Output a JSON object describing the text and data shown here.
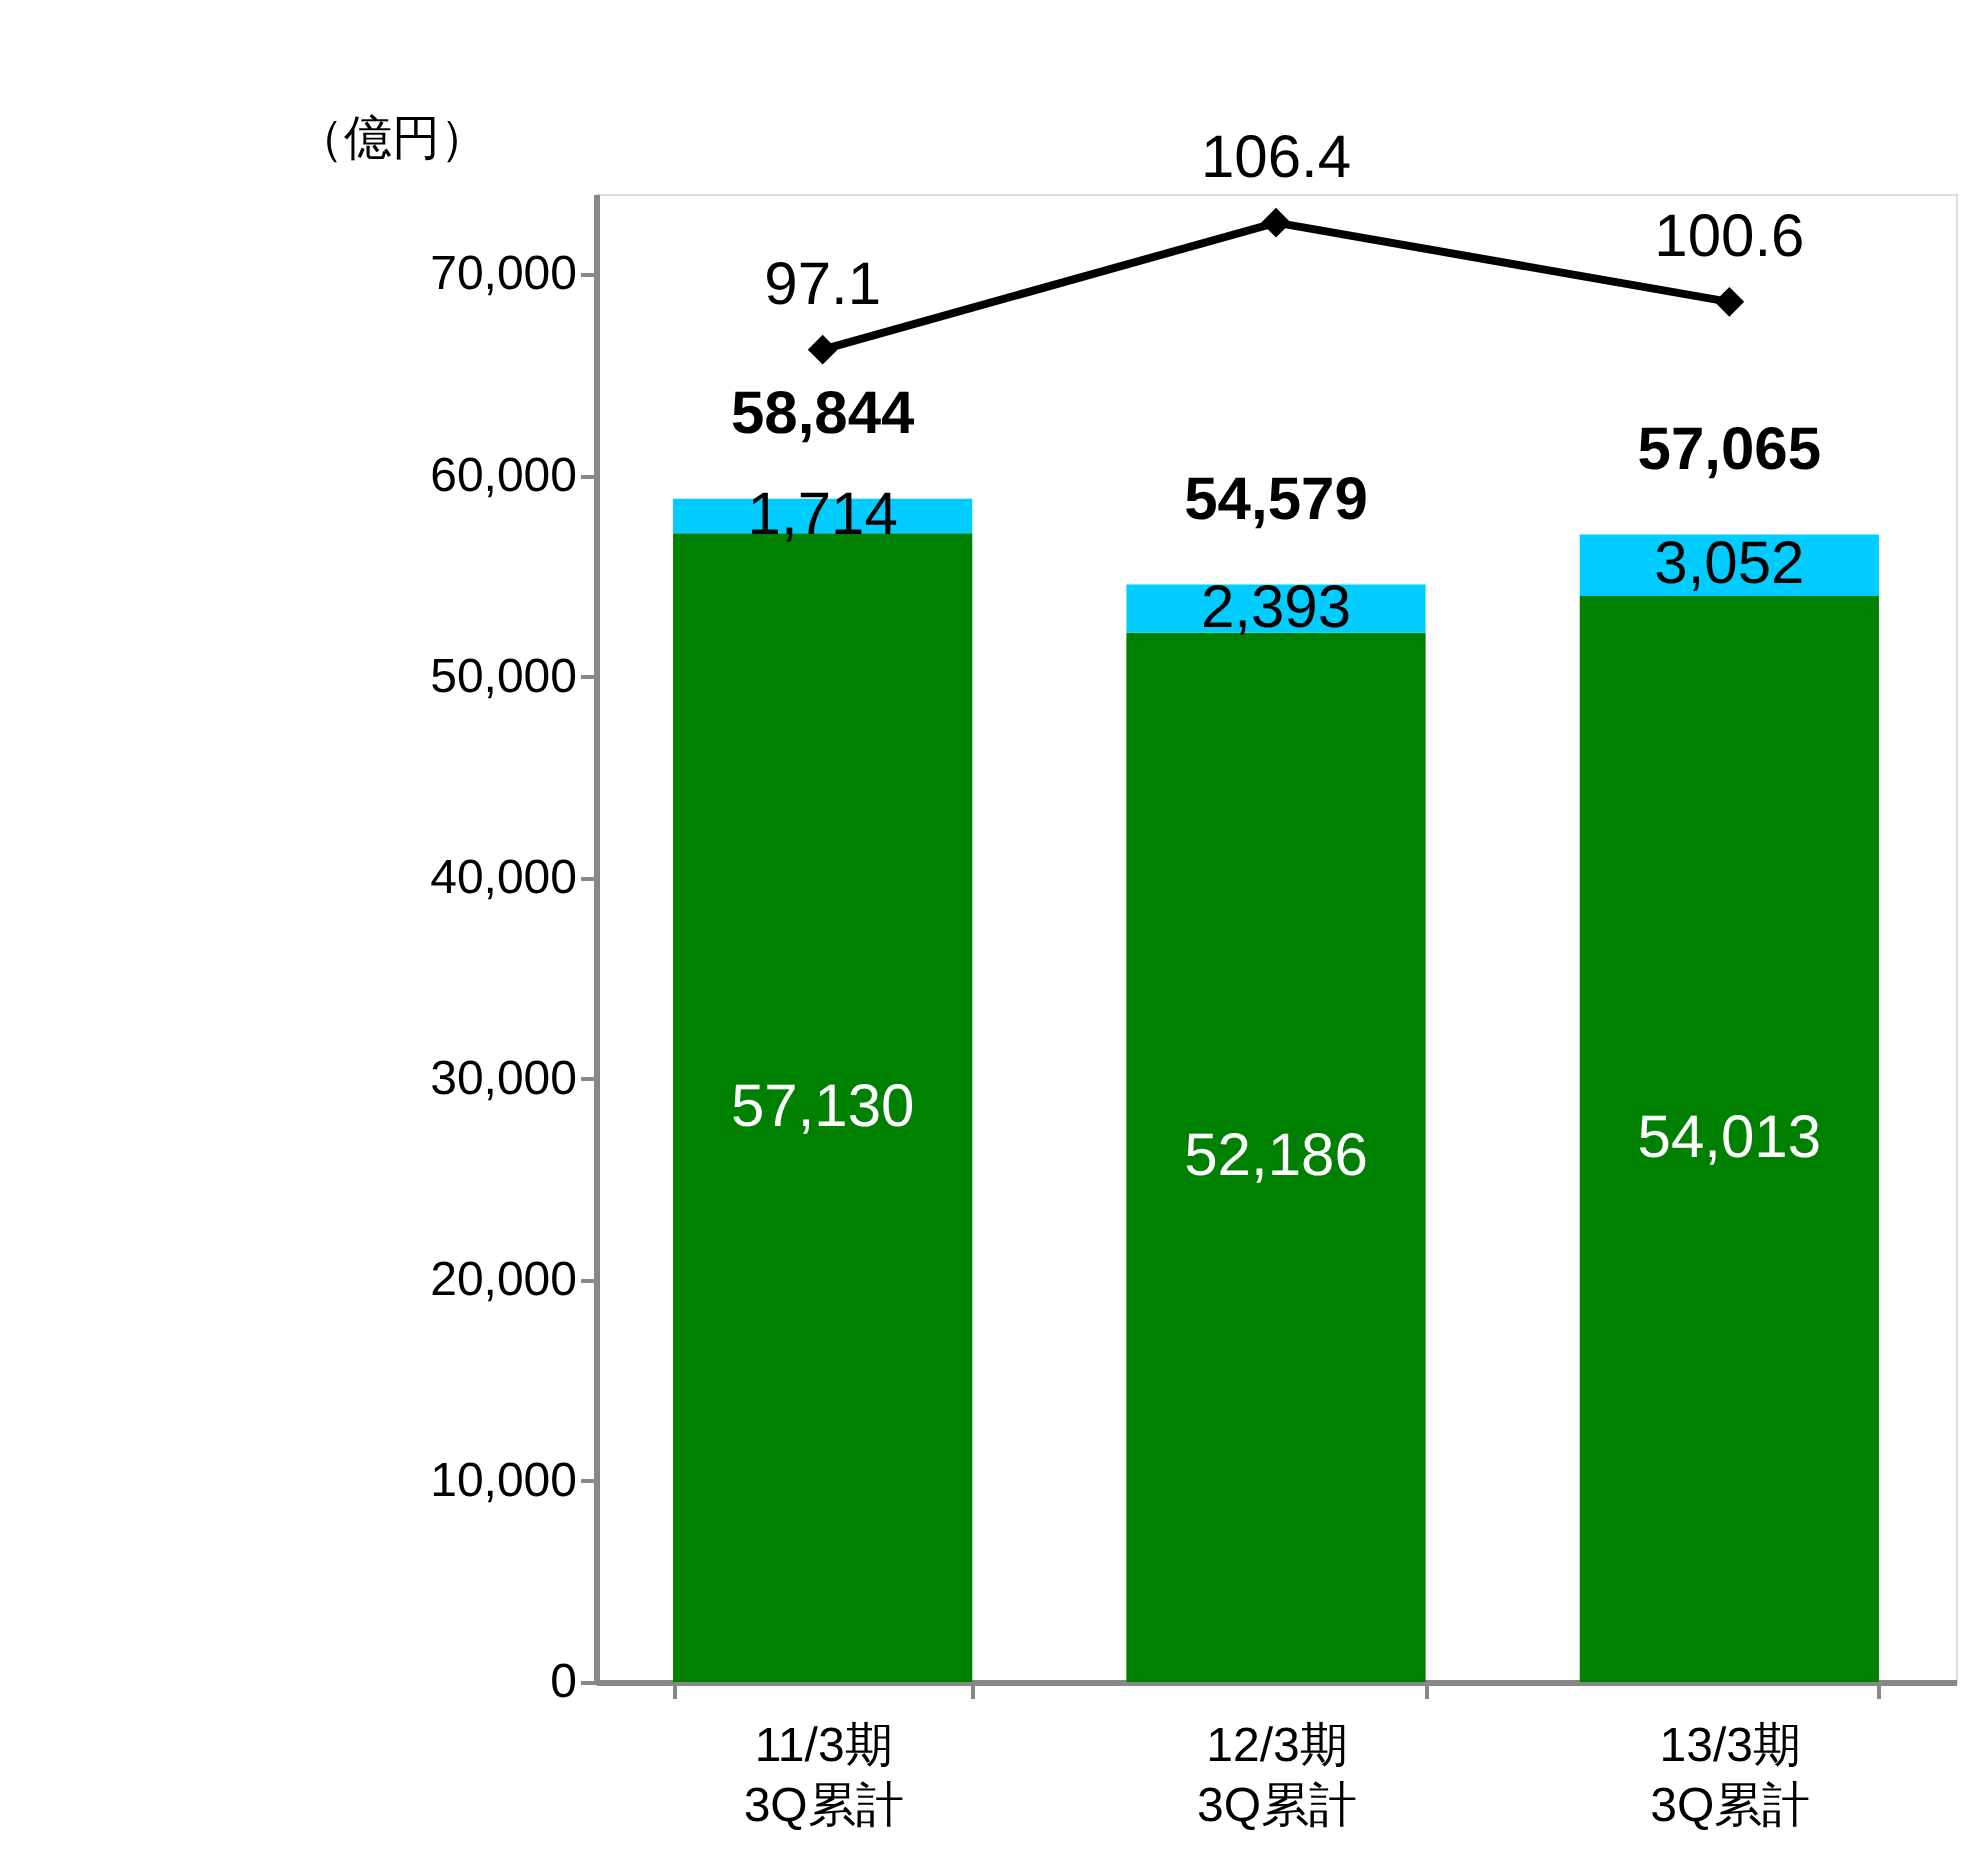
{
  "chart_data": {
    "type": "bar",
    "stacked": true,
    "ylabel": "（億円）",
    "categories": [
      "11/3期\n3Q累計",
      "12/3期\n3Q累計",
      "13/3期\n3Q累計"
    ],
    "series": [
      {
        "color": "#008000",
        "values": [
          57130,
          52186,
          54013
        ],
        "value_labels": [
          "57,130",
          "52,186",
          "54,013"
        ]
      },
      {
        "color": "#00ccff",
        "values": [
          1714,
          2393,
          3052
        ],
        "value_labels": [
          "1,714",
          "2,393",
          "3,052"
        ]
      },
      {
        "type": "line",
        "axis": "y2",
        "color": "#000000",
        "values": [
          97.1,
          106.4,
          100.6
        ]
      }
    ],
    "totals": [
      "58,844",
      "54,579",
      "57,065"
    ],
    "data_labels": true,
    "marker": "diamond",
    "grid": false,
    "ylim": [
      0,
      74000
    ],
    "yticks": [
      {
        "value": 0,
        "label": "0"
      },
      {
        "value": 10000,
        "label": "10,000"
      },
      {
        "value": 20000,
        "label": "20,000"
      },
      {
        "value": 30000,
        "label": "30,000"
      },
      {
        "value": 40000,
        "label": "40,000"
      },
      {
        "value": 50000,
        "label": "50,000"
      },
      {
        "value": 60000,
        "label": "60,000"
      },
      {
        "value": 70000,
        "label": "70,000"
      }
    ],
    "y2lim": [
      -0.5,
      108.5
    ]
  }
}
